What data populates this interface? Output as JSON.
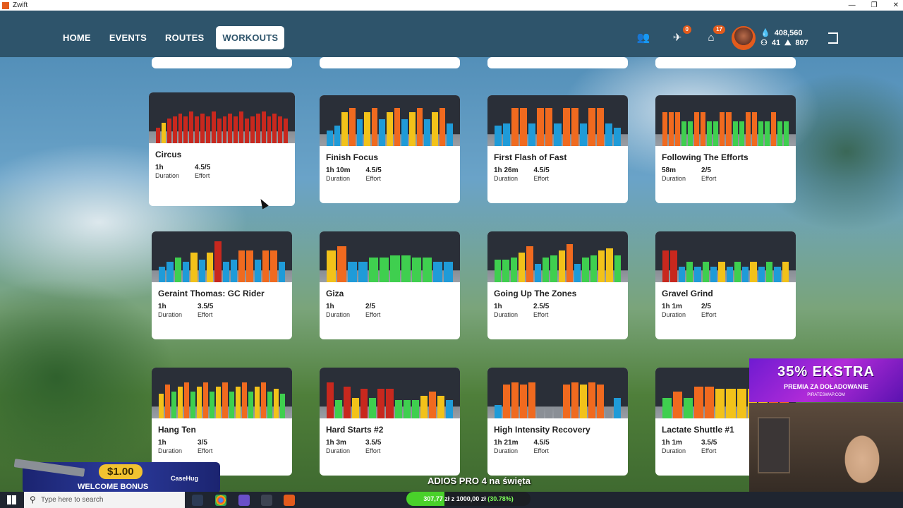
{
  "window": {
    "title": "Zwift",
    "controls": [
      "—",
      "❐",
      "✕"
    ]
  },
  "nav": {
    "tabs": [
      {
        "label": "HOME",
        "active": false
      },
      {
        "label": "EVENTS",
        "active": false
      },
      {
        "label": "ROUTES",
        "active": false
      },
      {
        "label": "WORKOUTS",
        "active": true
      }
    ],
    "friends_icon": "friends-icon",
    "notifications_badge": "0",
    "garage_badge": "17",
    "drops": "408,560",
    "level": "41",
    "distance": "807"
  },
  "colors": {
    "blue": "#1f9bd8",
    "green": "#3fcf4f",
    "yellow": "#f2c21a",
    "orange": "#f06a1f",
    "red": "#c8281e",
    "grey": "#8a8f96"
  },
  "labels": {
    "duration": "Duration",
    "effort": "Effort"
  },
  "workouts": [
    {
      "name": "Circus",
      "duration": "1h",
      "effort": "4.5/5",
      "bars": [
        [
          "red",
          0.35
        ],
        [
          "yellow",
          0.45
        ],
        [
          "red",
          0.55
        ],
        [
          "red",
          0.6
        ],
        [
          "red",
          0.65
        ],
        [
          "red",
          0.6
        ],
        [
          "red",
          0.7
        ],
        [
          "red",
          0.6
        ],
        [
          "red",
          0.65
        ],
        [
          "red",
          0.6
        ],
        [
          "red",
          0.7
        ],
        [
          "red",
          0.55
        ],
        [
          "red",
          0.6
        ],
        [
          "red",
          0.65
        ],
        [
          "red",
          0.6
        ],
        [
          "red",
          0.7
        ],
        [
          "red",
          0.55
        ],
        [
          "red",
          0.6
        ],
        [
          "red",
          0.65
        ],
        [
          "red",
          0.7
        ],
        [
          "red",
          0.6
        ],
        [
          "red",
          0.65
        ],
        [
          "red",
          0.6
        ],
        [
          "red",
          0.55
        ]
      ]
    },
    {
      "name": "Finish Focus",
      "duration": "1h 10m",
      "effort": "4.5/5",
      "bars": [
        [
          "blue",
          0.35
        ],
        [
          "blue",
          0.45
        ],
        [
          "yellow",
          0.75
        ],
        [
          "orange",
          0.85
        ],
        [
          "blue",
          0.6
        ],
        [
          "yellow",
          0.75
        ],
        [
          "orange",
          0.85
        ],
        [
          "blue",
          0.6
        ],
        [
          "yellow",
          0.75
        ],
        [
          "orange",
          0.85
        ],
        [
          "blue",
          0.6
        ],
        [
          "yellow",
          0.75
        ],
        [
          "orange",
          0.85
        ],
        [
          "blue",
          0.6
        ],
        [
          "yellow",
          0.75
        ],
        [
          "orange",
          0.85
        ],
        [
          "blue",
          0.5
        ]
      ]
    },
    {
      "name": "First Flash of Fast",
      "duration": "1h 26m",
      "effort": "4.5/5",
      "bars": [
        [
          "blue",
          0.45
        ],
        [
          "blue",
          0.5
        ],
        [
          "orange",
          0.85
        ],
        [
          "orange",
          0.85
        ],
        [
          "blue",
          0.5
        ],
        [
          "orange",
          0.85
        ],
        [
          "orange",
          0.85
        ],
        [
          "blue",
          0.5
        ],
        [
          "orange",
          0.85
        ],
        [
          "orange",
          0.85
        ],
        [
          "blue",
          0.5
        ],
        [
          "orange",
          0.85
        ],
        [
          "orange",
          0.85
        ],
        [
          "blue",
          0.5
        ],
        [
          "blue",
          0.4
        ]
      ]
    },
    {
      "name": "Following The Efforts",
      "duration": "58m",
      "effort": "2/5",
      "bars": [
        [
          "orange",
          0.75
        ],
        [
          "orange",
          0.75
        ],
        [
          "orange",
          0.75
        ],
        [
          "green",
          0.55
        ],
        [
          "green",
          0.55
        ],
        [
          "orange",
          0.75
        ],
        [
          "orange",
          0.75
        ],
        [
          "green",
          0.55
        ],
        [
          "green",
          0.55
        ],
        [
          "orange",
          0.75
        ],
        [
          "orange",
          0.75
        ],
        [
          "green",
          0.55
        ],
        [
          "green",
          0.55
        ],
        [
          "orange",
          0.75
        ],
        [
          "orange",
          0.75
        ],
        [
          "green",
          0.55
        ],
        [
          "green",
          0.55
        ],
        [
          "orange",
          0.75
        ],
        [
          "green",
          0.55
        ],
        [
          "green",
          0.55
        ]
      ]
    },
    {
      "name": "Geraint Thomas: GC Rider",
      "duration": "1h",
      "effort": "3.5/5",
      "bars": [
        [
          "blue",
          0.35
        ],
        [
          "blue",
          0.45
        ],
        [
          "green",
          0.55
        ],
        [
          "blue",
          0.45
        ],
        [
          "yellow",
          0.65
        ],
        [
          "blue",
          0.5
        ],
        [
          "yellow",
          0.65
        ],
        [
          "red",
          0.9
        ],
        [
          "blue",
          0.45
        ],
        [
          "blue",
          0.5
        ],
        [
          "orange",
          0.7
        ],
        [
          "orange",
          0.7
        ],
        [
          "blue",
          0.5
        ],
        [
          "orange",
          0.7
        ],
        [
          "orange",
          0.7
        ],
        [
          "blue",
          0.45
        ]
      ]
    },
    {
      "name": "Giza",
      "duration": "1h",
      "effort": "2/5",
      "bars": [
        [
          "yellow",
          0.7
        ],
        [
          "orange",
          0.8
        ],
        [
          "blue",
          0.45
        ],
        [
          "blue",
          0.45
        ],
        [
          "green",
          0.55
        ],
        [
          "green",
          0.55
        ],
        [
          "green",
          0.6
        ],
        [
          "green",
          0.6
        ],
        [
          "green",
          0.55
        ],
        [
          "green",
          0.55
        ],
        [
          "blue",
          0.45
        ],
        [
          "blue",
          0.45
        ]
      ]
    },
    {
      "name": "Going Up The Zones",
      "duration": "1h",
      "effort": "2.5/5",
      "bars": [
        [
          "green",
          0.5
        ],
        [
          "green",
          0.5
        ],
        [
          "green",
          0.55
        ],
        [
          "yellow",
          0.65
        ],
        [
          "orange",
          0.8
        ],
        [
          "blue",
          0.4
        ],
        [
          "green",
          0.55
        ],
        [
          "green",
          0.6
        ],
        [
          "yellow",
          0.7
        ],
        [
          "orange",
          0.85
        ],
        [
          "blue",
          0.4
        ],
        [
          "green",
          0.55
        ],
        [
          "green",
          0.6
        ],
        [
          "yellow",
          0.7
        ],
        [
          "yellow",
          0.75
        ],
        [
          "green",
          0.6
        ]
      ]
    },
    {
      "name": "Gravel Grind",
      "duration": "1h 1m",
      "effort": "2/5",
      "bars": [
        [
          "red",
          0.7
        ],
        [
          "red",
          0.7
        ],
        [
          "blue",
          0.35
        ],
        [
          "green",
          0.45
        ],
        [
          "blue",
          0.35
        ],
        [
          "green",
          0.45
        ],
        [
          "blue",
          0.35
        ],
        [
          "yellow",
          0.45
        ],
        [
          "blue",
          0.35
        ],
        [
          "green",
          0.45
        ],
        [
          "blue",
          0.35
        ],
        [
          "yellow",
          0.45
        ],
        [
          "blue",
          0.35
        ],
        [
          "green",
          0.45
        ],
        [
          "blue",
          0.35
        ],
        [
          "yellow",
          0.45
        ]
      ]
    },
    {
      "name": "Hang Ten",
      "duration": "1h",
      "effort": "3/5",
      "bars": [
        [
          "yellow",
          0.55
        ],
        [
          "orange",
          0.75
        ],
        [
          "green",
          0.6
        ],
        [
          "yellow",
          0.7
        ],
        [
          "orange",
          0.8
        ],
        [
          "green",
          0.6
        ],
        [
          "yellow",
          0.7
        ],
        [
          "orange",
          0.8
        ],
        [
          "green",
          0.6
        ],
        [
          "yellow",
          0.7
        ],
        [
          "orange",
          0.8
        ],
        [
          "green",
          0.6
        ],
        [
          "yellow",
          0.7
        ],
        [
          "orange",
          0.8
        ],
        [
          "green",
          0.6
        ],
        [
          "yellow",
          0.7
        ],
        [
          "orange",
          0.8
        ],
        [
          "green",
          0.6
        ],
        [
          "yellow",
          0.65
        ],
        [
          "green",
          0.55
        ]
      ]
    },
    {
      "name": "Hard Starts #2",
      "duration": "1h 3m",
      "effort": "3.5/5",
      "bars": [
        [
          "red",
          0.8
        ],
        [
          "green",
          0.4
        ],
        [
          "red",
          0.7
        ],
        [
          "yellow",
          0.45
        ],
        [
          "red",
          0.65
        ],
        [
          "green",
          0.45
        ],
        [
          "red",
          0.65
        ],
        [
          "red",
          0.65
        ],
        [
          "green",
          0.4
        ],
        [
          "green",
          0.4
        ],
        [
          "green",
          0.4
        ],
        [
          "yellow",
          0.5
        ],
        [
          "orange",
          0.6
        ],
        [
          "yellow",
          0.5
        ],
        [
          "blue",
          0.4
        ]
      ]
    },
    {
      "name": "High Intensity Recovery",
      "duration": "1h 21m",
      "effort": "4.5/5",
      "bars": [
        [
          "blue",
          0.3
        ],
        [
          "orange",
          0.75
        ],
        [
          "orange",
          0.8
        ],
        [
          "orange",
          0.75
        ],
        [
          "orange",
          0.8
        ],
        [
          "grey",
          0.25
        ],
        [
          "grey",
          0.25
        ],
        [
          "grey",
          0.25
        ],
        [
          "orange",
          0.75
        ],
        [
          "orange",
          0.8
        ],
        [
          "yellow",
          0.75
        ],
        [
          "orange",
          0.8
        ],
        [
          "orange",
          0.75
        ],
        [
          "grey",
          0.25
        ],
        [
          "blue",
          0.45
        ]
      ]
    },
    {
      "name": "Lactate Shuttle #1",
      "duration": "1h 1m",
      "effort": "3.5/5",
      "bars": [
        [
          "green",
          0.45
        ],
        [
          "orange",
          0.6
        ],
        [
          "green",
          0.45
        ],
        [
          "orange",
          0.7
        ],
        [
          "orange",
          0.7
        ],
        [
          "yellow",
          0.65
        ],
        [
          "yellow",
          0.65
        ],
        [
          "yellow",
          0.65
        ],
        [
          "yellow",
          0.65
        ],
        [
          "yellow",
          0.65
        ],
        [
          "orange",
          0.7
        ],
        [
          "orange",
          0.7
        ]
      ]
    }
  ],
  "overlays": {
    "promo_big": "35% EKSTRA",
    "promo_small": "PREMIA ZA DOŁADOWANIE",
    "promo_site": "PIRATESWAP.COM",
    "bonus_amount": "$1.00",
    "bonus_text": "WELCOME BONUS",
    "bonus_brand": "CaseHug",
    "adios": "ADIOS PRO 4 na święta",
    "progress": {
      "text": "307,77 zł z 1000,00 zł",
      "pct": "(30.78%)",
      "fraction": 0.3078
    }
  },
  "taskbar": {
    "search_placeholder": "Type here to search"
  }
}
